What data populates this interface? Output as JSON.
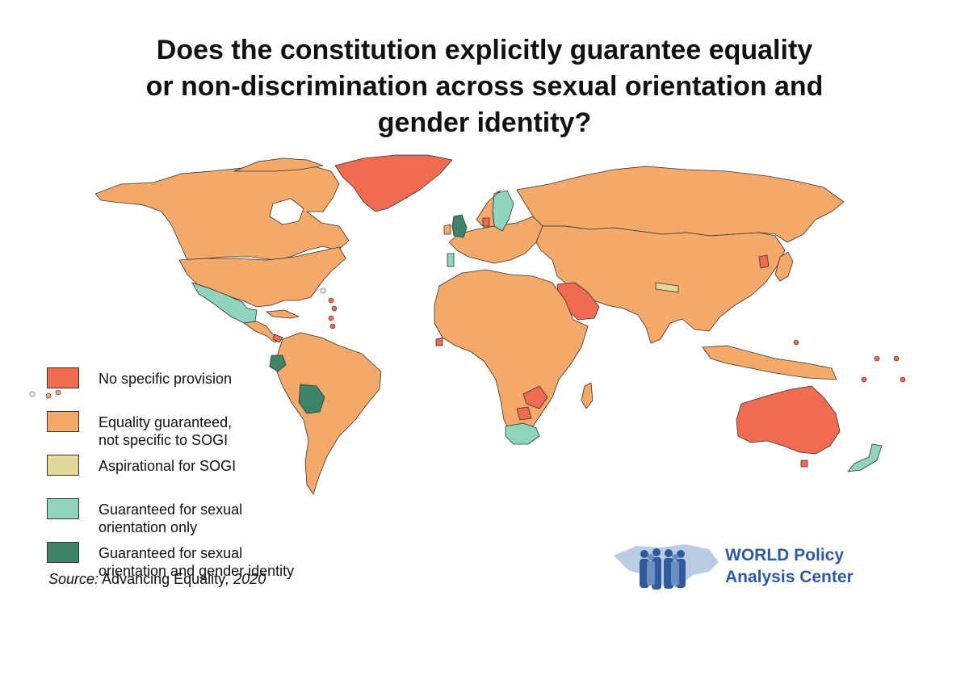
{
  "title": {
    "line1": "Does the constitution explicitly guarantee equality",
    "line2": "or non-discrimination across sexual orientation and",
    "line3": "gender identity?"
  },
  "legend": [
    {
      "label": "No specific provision",
      "color": "#ef6b52"
    },
    {
      "label": "Equality guaranteed,\nnot specific to SOGI",
      "color": "#f2a96a"
    },
    {
      "label": "Aspirational for SOGI",
      "color": "#e2d89a"
    },
    {
      "label": "Guaranteed for sexual\norientation only",
      "color": "#8fd4bd"
    },
    {
      "label": "Guaranteed for sexual\norientation and gender identity",
      "color": "#3f8468"
    }
  ],
  "source": {
    "prefix": "Source:",
    "text": " Advancing Equality",
    "year": ", 2020"
  },
  "logo": {
    "line1": "WORLD Policy",
    "line2": "Analysis Center",
    "color": "#2f5b9a"
  },
  "colors": {
    "none": "#ef6b52",
    "equality": "#f2a96a",
    "aspirational": "#e2d89a",
    "so_only": "#8fd4bd",
    "so_gi": "#3f8468",
    "border": "#333333"
  }
}
